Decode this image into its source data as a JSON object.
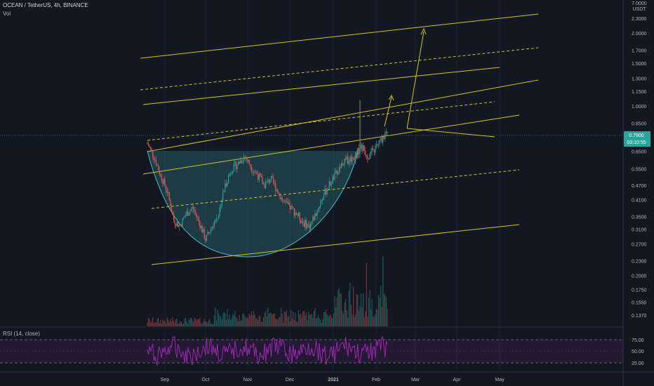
{
  "header": {
    "title": "OCEAN / TetherUS, 4h, BINANCE",
    "vol_label": "Vol"
  },
  "axis_unit": {
    "line1": "7.0000",
    "line2": "USDT"
  },
  "rsi": {
    "label": "RSI (14, close)"
  },
  "price_badge": {
    "price": "0.7900",
    "countdown": "03:10:55",
    "color": "#26a69a"
  },
  "colors": {
    "background": "#131722",
    "channel": "#d4c326",
    "cup": "#3fbfbf",
    "rsi": "#9c27b0",
    "up": "#26a69a",
    "down": "#ef5350"
  },
  "chart_data": {
    "type": "line",
    "title": "OCEAN / TetherUS, 4h, BINANCE",
    "xlabel": "",
    "ylabel": "",
    "y_scale": "log",
    "y_ticks": [
      "2.3000",
      "2.0000",
      "1.7000",
      "1.5000",
      "1.3000",
      "1.1500",
      "1.0000",
      "0.8500",
      "0.7500",
      "0.6500",
      "0.5500",
      "0.4700",
      "0.4100",
      "0.3500",
      "0.3100",
      "0.2700",
      "0.2300",
      "0.2000",
      "0.1750",
      "0.1550",
      "0.1370"
    ],
    "x_ticks": [
      "Sep",
      "Oct",
      "Nov",
      "Dec",
      "2021",
      "Feb",
      "Mar",
      "Apr",
      "May"
    ],
    "rsi_ticks": [
      "75.00",
      "50.00",
      "25.00"
    ],
    "price_series": [
      0.7,
      0.62,
      0.52,
      0.45,
      0.34,
      0.32,
      0.36,
      0.38,
      0.33,
      0.28,
      0.32,
      0.36,
      0.47,
      0.55,
      0.58,
      0.62,
      0.56,
      0.52,
      0.47,
      0.5,
      0.45,
      0.4,
      0.38,
      0.36,
      0.33,
      0.32,
      0.36,
      0.42,
      0.47,
      0.52,
      0.58,
      0.6,
      0.62,
      0.68,
      0.62,
      0.66,
      0.72,
      0.79
    ]
  }
}
